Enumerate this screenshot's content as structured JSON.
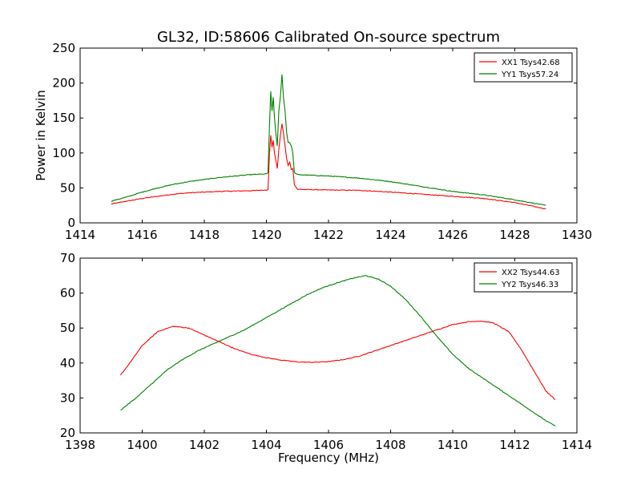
{
  "chart_data": [
    {
      "type": "line",
      "title": "GL32, ID:58606 Calibrated On-source spectrum",
      "xlabel": "",
      "ylabel": "Power in Kelvin",
      "xlim": [
        1414,
        1430
      ],
      "ylim": [
        0,
        250
      ],
      "xticks": [
        1414,
        1416,
        1418,
        1420,
        1422,
        1424,
        1426,
        1428,
        1430
      ],
      "yticks": [
        0,
        50,
        100,
        150,
        200,
        250
      ],
      "grid": false,
      "legend_position": "top-right",
      "series": [
        {
          "name": "XX1 Tsys42.68",
          "color": "#ff0000",
          "points": [
            [
              1415.0,
              27
            ],
            [
              1415.5,
              31
            ],
            [
              1416.0,
              35
            ],
            [
              1416.5,
              38
            ],
            [
              1417.0,
              41
            ],
            [
              1417.5,
              43
            ],
            [
              1418.0,
              44
            ],
            [
              1418.5,
              45
            ],
            [
              1419.0,
              45.5
            ],
            [
              1419.5,
              46
            ],
            [
              1420.0,
              47
            ],
            [
              1420.05,
              48
            ],
            [
              1420.1,
              100
            ],
            [
              1420.14,
              125
            ],
            [
              1420.18,
              108
            ],
            [
              1420.22,
              118
            ],
            [
              1420.26,
              100
            ],
            [
              1420.3,
              90
            ],
            [
              1420.35,
              78
            ],
            [
              1420.4,
              105
            ],
            [
              1420.45,
              125
            ],
            [
              1420.5,
              142
            ],
            [
              1420.55,
              128
            ],
            [
              1420.6,
              110
            ],
            [
              1420.65,
              92
            ],
            [
              1420.7,
              82
            ],
            [
              1420.75,
              87
            ],
            [
              1420.8,
              76
            ],
            [
              1420.85,
              78
            ],
            [
              1420.9,
              55
            ],
            [
              1421.0,
              48
            ],
            [
              1422.0,
              47
            ],
            [
              1423.0,
              46.5
            ],
            [
              1424.0,
              44
            ],
            [
              1425.0,
              41
            ],
            [
              1426.0,
              38
            ],
            [
              1427.0,
              35
            ],
            [
              1428.0,
              29
            ],
            [
              1429.0,
              20
            ]
          ]
        },
        {
          "name": "YY1 Tsys57.24",
          "color": "#008000",
          "points": [
            [
              1415.0,
              31
            ],
            [
              1415.5,
              37
            ],
            [
              1416.0,
              44
            ],
            [
              1416.5,
              50
            ],
            [
              1417.0,
              55
            ],
            [
              1417.5,
              59
            ],
            [
              1418.0,
              62
            ],
            [
              1418.5,
              65
            ],
            [
              1419.0,
              67
            ],
            [
              1419.5,
              69
            ],
            [
              1420.0,
              70
            ],
            [
              1420.05,
              72
            ],
            [
              1420.1,
              140
            ],
            [
              1420.14,
              188
            ],
            [
              1420.18,
              160
            ],
            [
              1420.22,
              180
            ],
            [
              1420.26,
              150
            ],
            [
              1420.3,
              130
            ],
            [
              1420.35,
              110
            ],
            [
              1420.4,
              160
            ],
            [
              1420.45,
              180
            ],
            [
              1420.5,
              212
            ],
            [
              1420.55,
              180
            ],
            [
              1420.6,
              160
            ],
            [
              1420.65,
              130
            ],
            [
              1420.7,
              115
            ],
            [
              1420.75,
              115
            ],
            [
              1420.8,
              110
            ],
            [
              1420.85,
              100
            ],
            [
              1420.9,
              72
            ],
            [
              1421.0,
              69
            ],
            [
              1422.0,
              67
            ],
            [
              1423.0,
              64
            ],
            [
              1424.0,
              59
            ],
            [
              1425.0,
              52
            ],
            [
              1426.0,
              45
            ],
            [
              1427.0,
              40
            ],
            [
              1428.0,
              33
            ],
            [
              1429.0,
              25
            ]
          ]
        }
      ]
    },
    {
      "type": "line",
      "title": "",
      "xlabel": "Frequency (MHz)",
      "ylabel": "",
      "xlim": [
        1398,
        1414
      ],
      "ylim": [
        20,
        70
      ],
      "xticks": [
        1398,
        1400,
        1402,
        1404,
        1406,
        1408,
        1410,
        1412,
        1414
      ],
      "yticks": [
        20,
        30,
        40,
        50,
        60,
        70
      ],
      "grid": false,
      "legend_position": "top-right",
      "series": [
        {
          "name": "XX2 Tsys44.63",
          "color": "#ff0000",
          "points": [
            [
              1399.3,
              36.5
            ],
            [
              1399.6,
              40
            ],
            [
              1400.0,
              45
            ],
            [
              1400.5,
              49
            ],
            [
              1401.0,
              50.5
            ],
            [
              1401.5,
              50
            ],
            [
              1402.0,
              48
            ],
            [
              1402.5,
              46
            ],
            [
              1403.0,
              44
            ],
            [
              1403.5,
              42.5
            ],
            [
              1404.0,
              41.5
            ],
            [
              1404.5,
              40.8
            ],
            [
              1405.0,
              40.3
            ],
            [
              1405.5,
              40.2
            ],
            [
              1406.0,
              40.4
            ],
            [
              1406.5,
              41
            ],
            [
              1407.0,
              42
            ],
            [
              1407.5,
              43.5
            ],
            [
              1408.0,
              45
            ],
            [
              1408.5,
              46.5
            ],
            [
              1409.0,
              48
            ],
            [
              1409.5,
              49.5
            ],
            [
              1410.0,
              51
            ],
            [
              1410.5,
              51.8
            ],
            [
              1410.9,
              52
            ],
            [
              1411.3,
              51.5
            ],
            [
              1411.8,
              49
            ],
            [
              1412.2,
              44
            ],
            [
              1412.6,
              38
            ],
            [
              1413.0,
              32
            ],
            [
              1413.3,
              29.5
            ]
          ]
        },
        {
          "name": "YY2 Tsys46.33",
          "color": "#008000",
          "points": [
            [
              1399.3,
              26.5
            ],
            [
              1399.8,
              30
            ],
            [
              1400.3,
              34
            ],
            [
              1400.8,
              38
            ],
            [
              1401.3,
              41
            ],
            [
              1401.8,
              43.5
            ],
            [
              1402.3,
              45.5
            ],
            [
              1402.8,
              47.5
            ],
            [
              1403.3,
              49.5
            ],
            [
              1403.8,
              52
            ],
            [
              1404.3,
              54.5
            ],
            [
              1404.8,
              57
            ],
            [
              1405.3,
              59.5
            ],
            [
              1405.8,
              61.5
            ],
            [
              1406.3,
              63
            ],
            [
              1406.8,
              64.3
            ],
            [
              1407.2,
              65
            ],
            [
              1407.6,
              64
            ],
            [
              1408.0,
              62
            ],
            [
              1408.5,
              58
            ],
            [
              1409.0,
              53
            ],
            [
              1409.5,
              47.5
            ],
            [
              1410.0,
              42.5
            ],
            [
              1410.5,
              38.5
            ],
            [
              1411.0,
              35.5
            ],
            [
              1411.5,
              32.5
            ],
            [
              1412.0,
              29.5
            ],
            [
              1412.5,
              26.5
            ],
            [
              1413.0,
              23.5
            ],
            [
              1413.3,
              22
            ]
          ]
        }
      ]
    }
  ]
}
